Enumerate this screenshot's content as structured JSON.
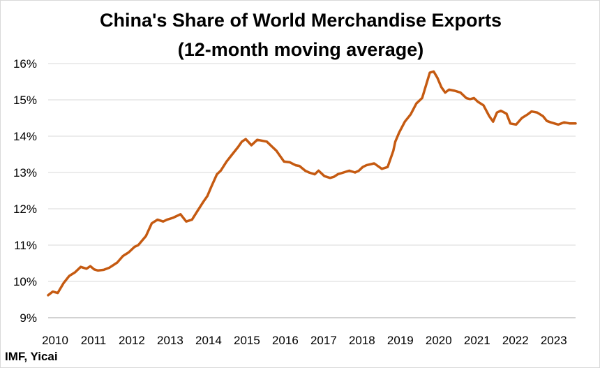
{
  "chart_data": {
    "type": "line",
    "title_line1": "China's Share of World Merchandise Exports",
    "title_line2": "(12-month moving average)",
    "source": "IMF, Yicai",
    "xlabel": "",
    "ylabel": "",
    "ylim": [
      9,
      16
    ],
    "yticks": [
      9,
      10,
      11,
      12,
      13,
      14,
      15,
      16
    ],
    "ytick_labels": [
      "9%",
      "10%",
      "11%",
      "12%",
      "13%",
      "14%",
      "15%",
      "16%"
    ],
    "xlim": [
      2010.0,
      2023.75
    ],
    "xtick_labels": [
      "2010",
      "2011",
      "2012",
      "2013",
      "2014",
      "2015",
      "2016",
      "2017",
      "2018",
      "2019",
      "2020",
      "2021",
      "2022",
      "2023"
    ],
    "grid": true,
    "line_color": "#c55a11",
    "series": [
      {
        "x": [
          2010.0,
          2010.12,
          2010.25,
          2010.4,
          2010.55,
          2010.7,
          2010.85,
          2011.0,
          2011.1,
          2011.2,
          2011.3,
          2011.45,
          2011.6,
          2011.8,
          2011.95,
          2012.1,
          2012.25,
          2012.35,
          2012.55,
          2012.7,
          2012.85,
          2013.0,
          2013.1,
          2013.25,
          2013.45,
          2013.6,
          2013.75,
          2013.9,
          2014.05,
          2014.15,
          2014.25,
          2014.4,
          2014.5,
          2014.65,
          2014.8,
          2014.95,
          2015.05,
          2015.15,
          2015.3,
          2015.45,
          2015.55,
          2015.7,
          2015.85,
          2015.95,
          2016.05,
          2016.15,
          2016.3,
          2016.45,
          2016.55,
          2016.7,
          2016.8,
          2016.95,
          2017.05,
          2017.2,
          2017.35,
          2017.45,
          2017.55,
          2017.7,
          2017.85,
          2018.0,
          2018.1,
          2018.2,
          2018.3,
          2018.5,
          2018.7,
          2018.85,
          2019.0,
          2019.05,
          2019.15,
          2019.3,
          2019.45,
          2019.6,
          2019.75,
          2019.95,
          2020.05,
          2020.15,
          2020.25,
          2020.35,
          2020.45,
          2020.6,
          2020.75,
          2020.9,
          2021.0,
          2021.1,
          2021.2,
          2021.35,
          2021.5,
          2021.6,
          2021.7,
          2021.8,
          2021.95,
          2022.05,
          2022.2,
          2022.35,
          2022.5,
          2022.6,
          2022.75,
          2022.9,
          2023.0,
          2023.1,
          2023.2,
          2023.3,
          2023.45,
          2023.6,
          2023.75
        ],
        "y": [
          9.62,
          9.72,
          9.68,
          9.95,
          10.15,
          10.25,
          10.4,
          10.35,
          10.42,
          10.33,
          10.3,
          10.32,
          10.38,
          10.52,
          10.7,
          10.8,
          10.95,
          11.0,
          11.25,
          11.6,
          11.7,
          11.65,
          11.7,
          11.75,
          11.85,
          11.65,
          11.7,
          11.95,
          12.2,
          12.35,
          12.6,
          12.95,
          13.05,
          13.3,
          13.5,
          13.7,
          13.85,
          13.92,
          13.75,
          13.9,
          13.88,
          13.85,
          13.7,
          13.6,
          13.45,
          13.3,
          13.28,
          13.2,
          13.18,
          13.05,
          13.0,
          12.95,
          13.05,
          12.9,
          12.85,
          12.88,
          12.95,
          13.0,
          13.05,
          13.0,
          13.05,
          13.15,
          13.2,
          13.25,
          13.1,
          13.15,
          13.6,
          13.85,
          14.1,
          14.4,
          14.6,
          14.9,
          15.05,
          15.75,
          15.78,
          15.6,
          15.35,
          15.2,
          15.28,
          15.25,
          15.2,
          15.05,
          15.02,
          15.05,
          14.95,
          14.85,
          14.55,
          14.4,
          14.65,
          14.7,
          14.62,
          14.35,
          14.32,
          14.5,
          14.6,
          14.68,
          14.65,
          14.55,
          14.42,
          14.38,
          14.35,
          14.32,
          14.38,
          14.35,
          14.35
        ]
      }
    ]
  }
}
